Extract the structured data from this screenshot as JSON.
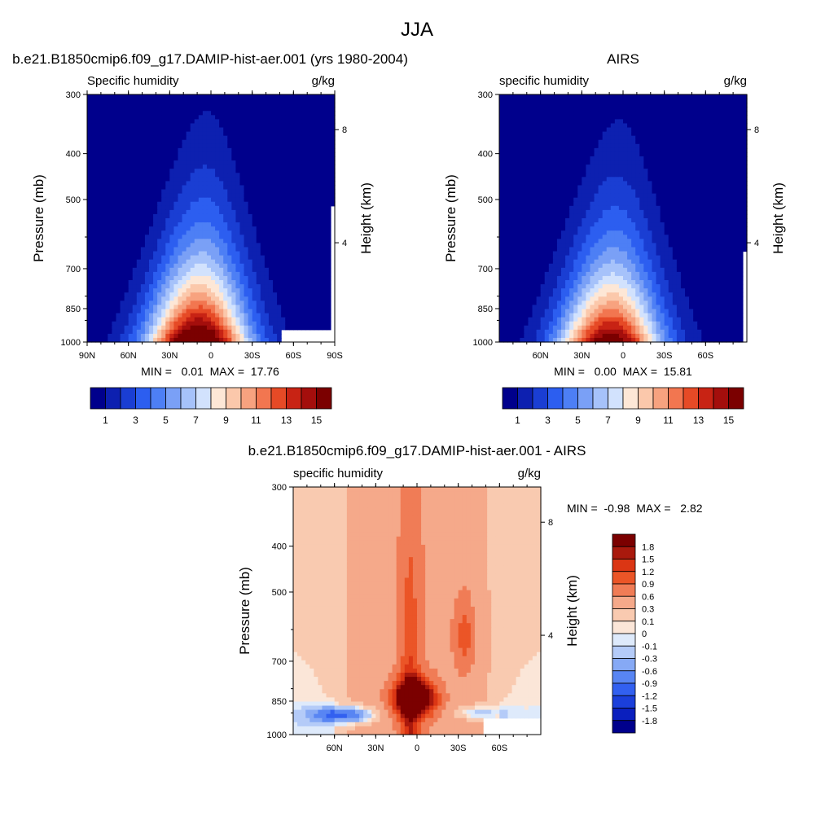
{
  "page_title": "JJA",
  "panels": {
    "model": {
      "title": "b.e21.B1850cmip6.f09_g17.DAMIP-hist-aer.001 (yrs 1980-2004)",
      "left_label": "Specific humidity",
      "right_label": "g/kg",
      "y_label": "Pressure (mb)",
      "y2_label": "Height (km)",
      "stats": "MIN =   0.01  MAX =  17.76"
    },
    "obs": {
      "title": "AIRS",
      "left_label": "specific humidity",
      "right_label": "g/kg",
      "y_label": "Pressure (mb)",
      "y2_label": "Height (km)",
      "stats": "MIN =   0.00  MAX =  15.81"
    },
    "diff": {
      "title": "b.e21.B1850cmip6.f09_g17.DAMIP-hist-aer.001 - AIRS",
      "left_label": "specific humidity",
      "right_label": "g/kg",
      "y_label": "Pressure (mb)",
      "y2_label": "Height (km)",
      "stats": "MIN =  -0.98  MAX =   2.82"
    }
  },
  "chart_data": [
    {
      "type": "heatmap",
      "title": "b.e21.B1850cmip6.f09_g17.DAMIP-hist-aer.001 (yrs 1980-2004)",
      "variable": "Specific humidity",
      "units": "g/kg",
      "x_ticks": [
        "90N",
        "60N",
        "30N",
        "0",
        "30S",
        "60S",
        "90S"
      ],
      "y_ticks": [
        300,
        400,
        500,
        700,
        850,
        1000
      ],
      "y2_ticks": [
        8,
        4
      ],
      "min": 0.01,
      "max": 17.76,
      "levels": [
        1,
        2,
        3,
        4,
        5,
        6,
        7,
        8,
        9,
        10,
        11,
        12,
        13,
        14,
        15
      ],
      "colorbar_labels": [
        "1",
        "3",
        "5",
        "7",
        "9",
        "11",
        "13",
        "15"
      ],
      "colors": [
        "#00008c",
        "#0d20b0",
        "#1a3ed3",
        "#2c5ef0",
        "#4d7ff5",
        "#7aa0f6",
        "#a6c2fa",
        "#d2e2fd",
        "#fde7d6",
        "#fbc8ab",
        "#f7a27f",
        "#f27650",
        "#e64a26",
        "#c82314",
        "#a40e0c",
        "#7b0000"
      ]
    },
    {
      "type": "heatmap",
      "title": "AIRS",
      "variable": "specific humidity",
      "units": "g/kg",
      "x_ticks": [
        "60N",
        "30N",
        "0",
        "30S",
        "60S"
      ],
      "y_ticks": [
        300,
        400,
        500,
        700,
        850,
        1000
      ],
      "y2_ticks": [
        8,
        4
      ],
      "min": 0.0,
      "max": 15.81,
      "levels": [
        1,
        2,
        3,
        4,
        5,
        6,
        7,
        8,
        9,
        10,
        11,
        12,
        13,
        14,
        15
      ],
      "colorbar_labels": [
        "1",
        "3",
        "5",
        "7",
        "9",
        "11",
        "13",
        "15"
      ],
      "colors": [
        "#00008c",
        "#0d20b0",
        "#1a3ed3",
        "#2c5ef0",
        "#4d7ff5",
        "#7aa0f6",
        "#a6c2fa",
        "#d2e2fd",
        "#fde7d6",
        "#fbc8ab",
        "#f7a27f",
        "#f27650",
        "#e64a26",
        "#c82314",
        "#a40e0c",
        "#7b0000"
      ]
    },
    {
      "type": "heatmap",
      "title": "b.e21.B1850cmip6.f09_g17.DAMIP-hist-aer.001 - AIRS",
      "variable": "specific humidity",
      "units": "g/kg",
      "x_ticks": [
        "60N",
        "30N",
        "0",
        "30S",
        "60S"
      ],
      "y_ticks": [
        300,
        400,
        500,
        700,
        850,
        1000
      ],
      "y2_ticks": [
        8,
        4
      ],
      "min": -0.98,
      "max": 2.82,
      "levels": [
        -1.8,
        -1.5,
        -1.2,
        -0.9,
        -0.6,
        -0.3,
        -0.1,
        0,
        0.1,
        0.3,
        0.6,
        0.9,
        1.2,
        1.5,
        1.8
      ],
      "colorbar_labels": [
        "1.8",
        "1.5",
        "1.2",
        "0.9",
        "0.6",
        "0.3",
        "0.1",
        "0",
        "-0.1",
        "-0.3",
        "-0.6",
        "-0.9",
        "-1.2",
        "-1.5",
        "-1.8"
      ],
      "colors": [
        "#00008c",
        "#0a1fbe",
        "#1b3fdb",
        "#3260f0",
        "#5885f3",
        "#86a9f5",
        "#b4cbf8",
        "#deeafb",
        "#fbe6d8",
        "#f9cab0",
        "#f5a98a",
        "#f07c56",
        "#eb5527",
        "#db3614",
        "#a9190d",
        "#7b0000"
      ]
    }
  ]
}
